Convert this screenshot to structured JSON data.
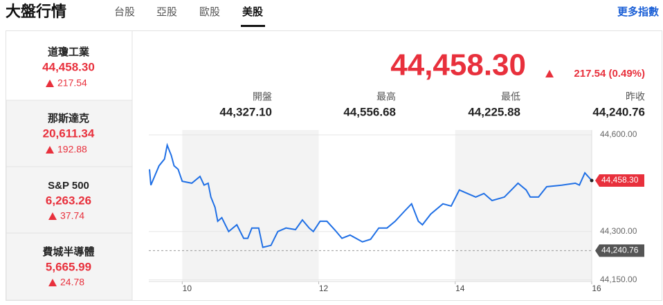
{
  "header": {
    "title": "大盤行情",
    "tabs": [
      "台股",
      "亞股",
      "歐股",
      "美股"
    ],
    "more_link": "更多指數"
  },
  "indices": [
    {
      "name": "道瓊工業",
      "value": "44,458.30",
      "change": "217.54"
    },
    {
      "name": "那斯達克",
      "value": "20,611.34",
      "change": "192.88"
    },
    {
      "name": "S&P 500",
      "value": "6,263.26",
      "change": "37.74"
    },
    {
      "name": "費城半導體",
      "value": "5,665.99",
      "change": "24.78"
    }
  ],
  "quote": {
    "price": "44,458.30",
    "change": "217.54 (0.49%)",
    "stats": [
      {
        "label": "開盤",
        "value": "44,327.10"
      },
      {
        "label": "最高",
        "value": "44,556.68"
      },
      {
        "label": "最低",
        "value": "44,225.88"
      },
      {
        "label": "昨收",
        "value": "44,240.76"
      }
    ]
  },
  "chart_data": {
    "type": "line",
    "color": "#1f6fe5",
    "x": [
      9.52,
      9.54,
      9.66,
      9.74,
      9.78,
      9.84,
      9.88,
      9.94,
      10.0,
      10.14,
      10.26,
      10.32,
      10.38,
      10.42,
      10.48,
      10.52,
      10.58,
      10.68,
      10.8,
      10.9,
      10.96,
      11.02,
      11.12,
      11.18,
      11.3,
      11.4,
      11.52,
      11.66,
      11.76,
      11.86,
      11.92,
      12.02,
      12.12,
      12.24,
      12.34,
      12.46,
      12.64,
      12.76,
      12.88,
      13.0,
      13.12,
      13.26,
      13.36,
      13.46,
      13.52,
      13.64,
      13.82,
      13.94,
      14.06,
      14.18,
      14.3,
      14.42,
      14.54,
      14.72,
      14.92,
      15.04,
      15.1,
      15.22,
      15.34,
      15.56,
      15.76,
      15.82,
      15.9,
      16.0
    ],
    "values": [
      44493,
      44444,
      44504,
      44525,
      44568,
      44536,
      44504,
      44493,
      44456,
      44450,
      44471,
      44444,
      44450,
      44407,
      44375,
      44332,
      44343,
      44300,
      44321,
      44279,
      44279,
      44311,
      44311,
      44251,
      44257,
      44300,
      44311,
      44306,
      44336,
      44311,
      44300,
      44332,
      44332,
      44304,
      44279,
      44289,
      44268,
      44276,
      44311,
      44311,
      44332,
      44364,
      44386,
      44332,
      44321,
      44354,
      44386,
      44379,
      44429,
      44418,
      44407,
      44418,
      44396,
      44407,
      44450,
      44429,
      44407,
      44407,
      44439,
      44444,
      44450,
      44444,
      44482,
      44458.3
    ],
    "xlim": [
      9.51,
      16
    ],
    "xticks": [
      10,
      12,
      14,
      16
    ],
    "ylim": [
      44145,
      44615
    ],
    "yticks": [
      {
        "value": 44150,
        "label": "44,150.00"
      },
      {
        "value": 44300,
        "label": "44,300.00"
      },
      {
        "value": 44600,
        "label": "44,600.00"
      }
    ],
    "grid": true,
    "reference_line": {
      "value": 44240.76,
      "label": "44,240.76"
    },
    "last_label": {
      "value": 44458.3,
      "label": "44,458.30"
    }
  }
}
